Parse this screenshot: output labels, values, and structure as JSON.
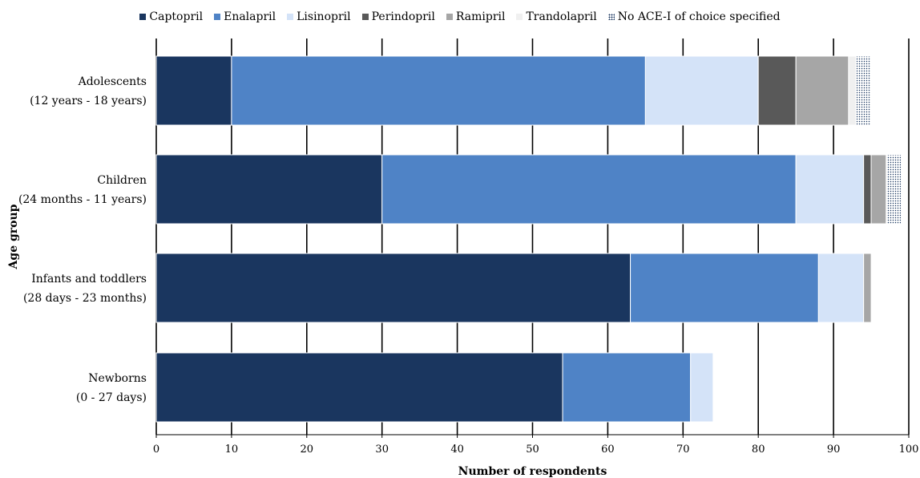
{
  "chart_data": {
    "type": "bar",
    "orientation": "horizontal",
    "stacked": true,
    "categories": [
      [
        "Adolescents",
        "(12 years - 18 years)"
      ],
      [
        "Children",
        "(24 months - 11 years)"
      ],
      [
        "Infants and toddlers",
        "(28 days - 23 months)"
      ],
      [
        "Newborns",
        "(0 - 27 days)"
      ]
    ],
    "series": [
      {
        "name": "Captopril",
        "color": "#1a365f",
        "values": [
          10,
          30,
          63,
          54
        ]
      },
      {
        "name": "Enalapril",
        "color": "#4f83c6",
        "values": [
          55,
          55,
          25,
          17
        ]
      },
      {
        "name": "Lisinopril",
        "color": "#d4e3f8",
        "values": [
          15,
          9,
          6,
          3
        ]
      },
      {
        "name": "Perindopril",
        "color": "#595959",
        "values": [
          5,
          1,
          0,
          0
        ]
      },
      {
        "name": "Ramipril",
        "color": "#a6a6a6",
        "values": [
          7,
          2,
          1,
          0
        ]
      },
      {
        "name": "Trandolapril",
        "color": "#f0f0f0",
        "values": [
          1,
          0,
          0,
          0
        ]
      },
      {
        "name": "No ACE-I of choice specified",
        "color": "#ffffff",
        "pattern": "dotted",
        "values": [
          2,
          2,
          0,
          0
        ]
      }
    ],
    "xlabel": "Number of respondents",
    "ylabel": "Age group",
    "xlim": [
      0,
      100
    ],
    "xticks": [
      0,
      10,
      20,
      30,
      40,
      50,
      60,
      70,
      80,
      90,
      100
    ],
    "grid": "vertical",
    "legend_position": "top"
  }
}
